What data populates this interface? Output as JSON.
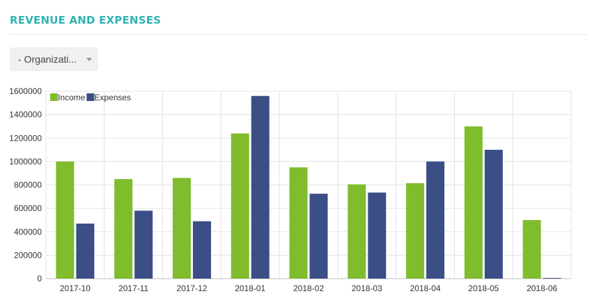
{
  "header": {
    "title": "REVENUE AND EXPENSES"
  },
  "filter": {
    "organization_selected": "- Organizati..."
  },
  "colors": {
    "accent": "#2fb3b3",
    "income": "#7fbd2d",
    "expenses": "#3c4e86"
  },
  "chart_data": {
    "type": "bar",
    "title": "",
    "xlabel": "",
    "ylabel": "",
    "categories": [
      "2017-10",
      "2017-11",
      "2017-12",
      "2018-01",
      "2018-02",
      "2018-03",
      "2018-04",
      "2018-05",
      "2018-06"
    ],
    "series": [
      {
        "name": "Income",
        "color": "#7fbd2d",
        "values": [
          1000000,
          850000,
          860000,
          1240000,
          950000,
          805000,
          815000,
          1300000,
          500000
        ]
      },
      {
        "name": "Expenses",
        "color": "#3c4e86",
        "values": [
          470000,
          580000,
          490000,
          1560000,
          725000,
          735000,
          1000000,
          1100000,
          5000
        ]
      }
    ],
    "ylim": [
      0,
      1600000
    ],
    "yticks": [
      0,
      200000,
      400000,
      600000,
      800000,
      1000000,
      1200000,
      1400000,
      1600000
    ],
    "ytick_labels": [
      "0",
      "200000",
      "400000",
      "600000",
      "800000",
      "1000000",
      "1200000",
      "1400000",
      "1600000"
    ],
    "grid": true,
    "legend": "top-left"
  }
}
